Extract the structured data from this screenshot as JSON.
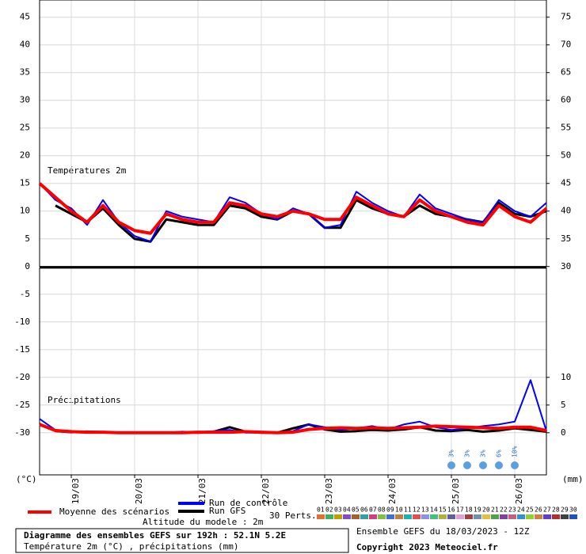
{
  "chart_data": {
    "type": "line",
    "x": [
      0,
      6,
      12,
      18,
      24,
      30,
      36,
      42,
      48,
      54,
      60,
      66,
      72,
      78,
      84,
      90,
      96,
      102,
      108,
      114,
      120,
      126,
      132,
      138,
      144,
      150,
      156,
      162,
      168,
      174,
      180,
      186,
      192
    ],
    "xlim": [
      0,
      192
    ],
    "xticks": [
      {
        "value": 12,
        "label": "19/03"
      },
      {
        "value": 36,
        "label": "20/03"
      },
      {
        "value": 60,
        "label": "21/03"
      },
      {
        "value": 84,
        "label": "22/03"
      },
      {
        "value": 108,
        "label": "23/03"
      },
      {
        "value": 132,
        "label": "24/03"
      },
      {
        "value": 156,
        "label": "25/03"
      },
      {
        "value": 180,
        "label": "26/03"
      }
    ],
    "ylim": [
      -37.6,
      48.1
    ],
    "yticks": [
      45,
      40,
      35,
      30,
      25,
      20,
      15,
      10,
      5,
      0,
      -5,
      -10,
      -15,
      -20,
      -25,
      -30
    ],
    "y2lim": [
      -7.6,
      78.1
    ],
    "y2ticks": [
      75,
      70,
      65,
      60,
      55,
      50,
      45,
      40,
      35,
      30,
      10,
      5,
      0
    ],
    "ylabel": "(°C)",
    "y2label": "(mm)",
    "grid": true,
    "annotations": [
      "Températures 2m",
      "Précipitations"
    ],
    "series": [
      {
        "name": "Moyenne des scénarios",
        "color": "#ff0000",
        "values": [
          15,
          12.5,
          10,
          8,
          11,
          8,
          6.5,
          6,
          9.5,
          8.5,
          8,
          8,
          11.5,
          11,
          9.5,
          9,
          10,
          9.5,
          8.5,
          8.5,
          12.5,
          11,
          9.5,
          9,
          12,
          10,
          9,
          8,
          7.5,
          11,
          9,
          8,
          10.5
        ]
      },
      {
        "name": "Run de contrôle",
        "color": "#0000ff",
        "values": [
          15,
          12,
          10.5,
          7.5,
          12,
          8,
          5.5,
          4.5,
          10,
          9,
          8.5,
          8,
          12.5,
          11.5,
          9.5,
          8.5,
          10.5,
          9.5,
          7,
          7.5,
          13.5,
          11.5,
          10,
          9,
          13,
          10.5,
          9.5,
          8.5,
          8,
          12,
          10,
          9,
          11.5
        ]
      },
      {
        "name": "Run GFS",
        "color": "#000000",
        "values": [
          null,
          11,
          9.5,
          8,
          10.5,
          7.5,
          5,
          4.5,
          8.5,
          8,
          7.5,
          7.5,
          11,
          10.5,
          9,
          8.5,
          10,
          9.5,
          7,
          7,
          12,
          10.5,
          9.5,
          9,
          11,
          9.5,
          9,
          8.5,
          8,
          11.5,
          9.5,
          9,
          10
        ]
      },
      {
        "color": "#ff0000",
        "axis": "y2",
        "values": [
          1.5,
          0.4,
          0.2,
          0.1,
          0.1,
          0,
          0,
          0,
          0,
          0,
          0.1,
          0.1,
          0.1,
          0.2,
          0.1,
          0,
          0.1,
          0.6,
          0.8,
          0.9,
          0.8,
          0.9,
          0.8,
          0.9,
          1.0,
          1.2,
          1.1,
          1.0,
          0.9,
          0.8,
          1.0,
          1.0,
          0.4
        ]
      },
      {
        "color": "#0000ff",
        "axis": "y2",
        "values": [
          2.5,
          0.5,
          0.3,
          0,
          0,
          0,
          0,
          0,
          0,
          0.2,
          0.1,
          0.3,
          0.5,
          0,
          0,
          0,
          0.3,
          1.5,
          1.0,
          0.5,
          0.8,
          1.2,
          0.6,
          1.5,
          2.0,
          1.0,
          0.5,
          0.8,
          1.2,
          1.5,
          2.0,
          9.5,
          0.3
        ]
      },
      {
        "color": "#000000",
        "axis": "y2",
        "values": [
          null,
          0.3,
          0.1,
          0.2,
          0.1,
          0,
          0,
          0,
          0,
          0.1,
          0,
          0.2,
          1.0,
          0.2,
          0,
          0,
          0.8,
          1.5,
          0.6,
          0.2,
          0.3,
          0.5,
          0.4,
          0.6,
          1.0,
          0.4,
          0.3,
          0.5,
          0.2,
          0.4,
          0.8,
          0.5,
          0.2
        ]
      }
    ],
    "snow_probability": {
      "x": [
        156,
        162,
        168,
        174,
        180
      ],
      "values": [
        3,
        3,
        3,
        6,
        10
      ],
      "value_labels": [
        "3%",
        "3%",
        "3%",
        "6%",
        "10%"
      ]
    },
    "perturbations": {
      "title": "30 Perts.",
      "labels": [
        "01",
        "02",
        "03",
        "04",
        "05",
        "06",
        "07",
        "08",
        "09",
        "10",
        "11",
        "12",
        "13",
        "14",
        "15",
        "16",
        "17",
        "18",
        "19",
        "20",
        "21",
        "22",
        "23",
        "24",
        "25",
        "26",
        "27",
        "28",
        "29",
        "30"
      ],
      "colors": [
        "#e07030",
        "#40b060",
        "#c0a000",
        "#8050c0",
        "#a06030",
        "#30a0a0",
        "#d04080",
        "#80c040",
        "#4070d0",
        "#c08040",
        "#20b0b0",
        "#e05050",
        "#9090e0",
        "#40c080",
        "#b0b040",
        "#6060a0",
        "#e0a0d0",
        "#a04040",
        "#7090b0",
        "#e0c040",
        "#50a050",
        "#8040a0",
        "#c06080",
        "#3090d0",
        "#90d030",
        "#d08040",
        "#6040c0",
        "#b03030",
        "#404040",
        "#2050c0"
      ]
    },
    "footer": {
      "altitude": "Altitude du modele : 2m",
      "box_title": "Diagramme des ensembles GEFS sur 192h : 52.1N 5.2E",
      "box_subtitle": "Température 2m (°C) , précipitations (mm)",
      "run": "Ensemble GEFS du 18/03/2023 - 12Z",
      "copyright": "Copyright 2023 Meteociel.fr"
    }
  }
}
